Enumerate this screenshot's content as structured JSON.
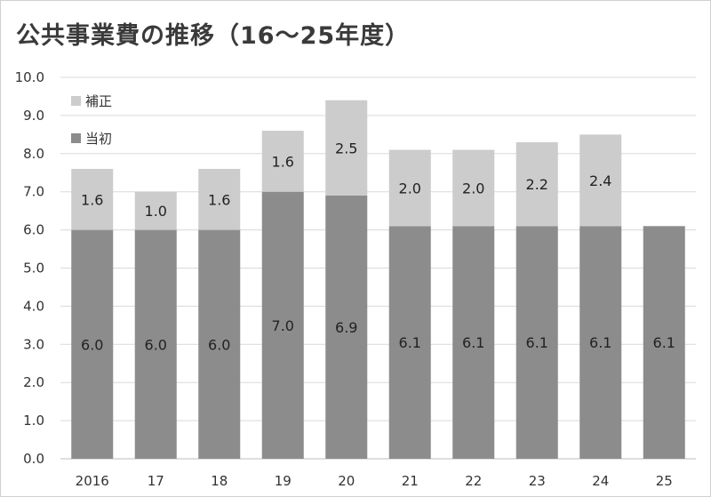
{
  "chart_data": {
    "type": "bar",
    "stacked": true,
    "title": "公共事業費の推移（16〜25年度）",
    "xlabel": "",
    "ylabel": "",
    "categories": [
      "2016",
      "17",
      "18",
      "19",
      "20",
      "21",
      "22",
      "23",
      "24",
      "25"
    ],
    "series": [
      {
        "name": "当初",
        "color": "#8c8c8c",
        "values": [
          6.0,
          6.0,
          6.0,
          7.0,
          6.9,
          6.1,
          6.1,
          6.1,
          6.1,
          6.1
        ],
        "labels": [
          "6.0",
          "6.0",
          "6.0",
          "7.0",
          "6.9",
          "6.1",
          "6.1",
          "6.1",
          "6.1",
          "6.1"
        ]
      },
      {
        "name": "補正",
        "color": "#cccccc",
        "values": [
          1.6,
          1.0,
          1.6,
          1.6,
          2.5,
          2.0,
          2.0,
          2.2,
          2.4,
          null
        ],
        "labels": [
          "1.6",
          "1.0",
          "1.6",
          "1.6",
          "2.5",
          "2.0",
          "2.0",
          "2.2",
          "2.4",
          ""
        ]
      }
    ],
    "ylim": [
      0,
      10
    ],
    "yticks": [
      "0.0",
      "1.0",
      "2.0",
      "3.0",
      "4.0",
      "5.0",
      "6.0",
      "7.0",
      "8.0",
      "9.0",
      "10.0"
    ],
    "grid": true,
    "legend": "top-left",
    "legend_order": [
      "補正",
      "当初"
    ]
  }
}
